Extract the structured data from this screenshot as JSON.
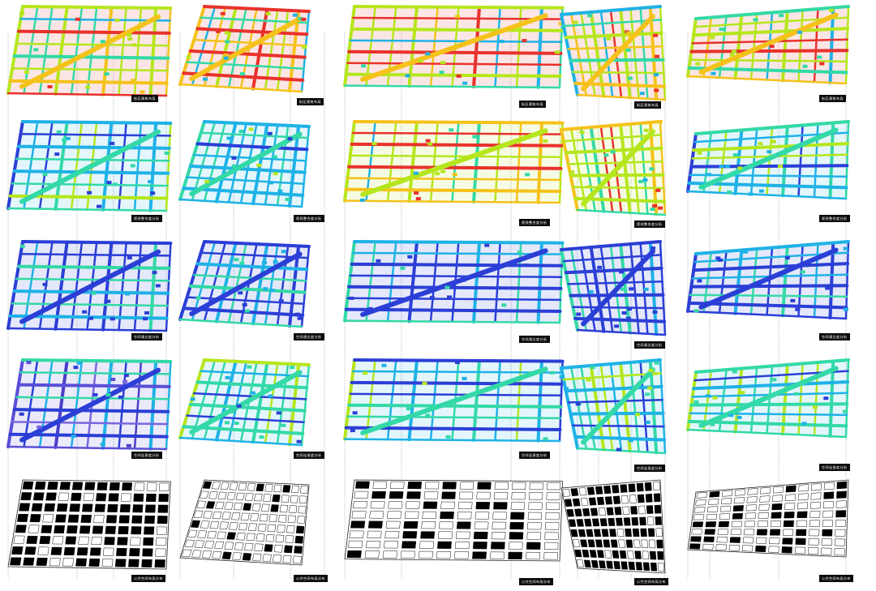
{
  "panel_labels": [
    {
      "label_text": "街区建筑布局"
    },
    {
      "label_text": "视线整合度分析"
    },
    {
      "label_text": "空间通达度分析"
    },
    {
      "label_text": "空间连接度分析"
    },
    {
      "label_text": "公共空间布局分布"
    }
  ],
  "colors": {
    "ramp_low": "#2b3fd6",
    "ramp_low_mid": "#1fb2e6",
    "ramp_mid": "#33d9a6",
    "ramp_mid_high": "#b5e61d",
    "ramp_high": "#f5c21b",
    "ramp_peak": "#e8322c",
    "building_fill": "#000000",
    "base_fill": "#ffffff",
    "label_bg": "#0c0c0c",
    "leader_line": "#9a9a9a"
  },
  "columns": [
    {
      "name": "district-1",
      "rows": [
        "multi",
        "cyan",
        "blue",
        "purple",
        "figure-ground"
      ]
    },
    {
      "name": "district-2",
      "rows": [
        "multi",
        "cyan",
        "blue",
        "cyan",
        "figure-ground"
      ]
    },
    {
      "name": "district-3",
      "rows": [
        "multi",
        "green",
        "blue",
        "cyan",
        "figure-ground"
      ]
    },
    {
      "name": "district-4",
      "rows": [
        "multi",
        "green",
        "blue",
        "cyan",
        "figure-ground"
      ]
    },
    {
      "name": "district-5",
      "rows": [
        "multi",
        "cyan",
        "blue",
        "cyan",
        "figure-ground"
      ]
    }
  ]
}
